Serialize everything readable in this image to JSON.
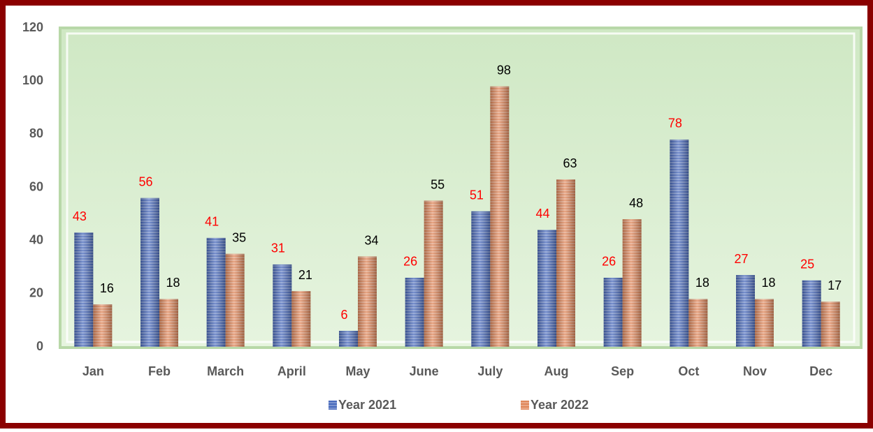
{
  "chart_data": {
    "type": "bar",
    "categories": [
      "Jan",
      "Feb",
      "March",
      "April",
      "May",
      "June",
      "July",
      "Aug",
      "Sep",
      "Oct",
      "Nov",
      "Dec"
    ],
    "series": [
      {
        "name": "Year 2021",
        "color": "#4a6bbd",
        "label_color": "#ff0000",
        "values": [
          43,
          56,
          41,
          31,
          6,
          26,
          51,
          44,
          26,
          78,
          27,
          25
        ]
      },
      {
        "name": "Year 2022",
        "color": "#e0875a",
        "label_color": "#000000",
        "values": [
          16,
          18,
          35,
          21,
          34,
          55,
          98,
          63,
          48,
          18,
          18,
          17
        ]
      }
    ],
    "ylim": [
      0,
      120
    ],
    "yticks": [
      0,
      20,
      40,
      60,
      80,
      100,
      120
    ],
    "grid": false,
    "legend": "bottom"
  }
}
